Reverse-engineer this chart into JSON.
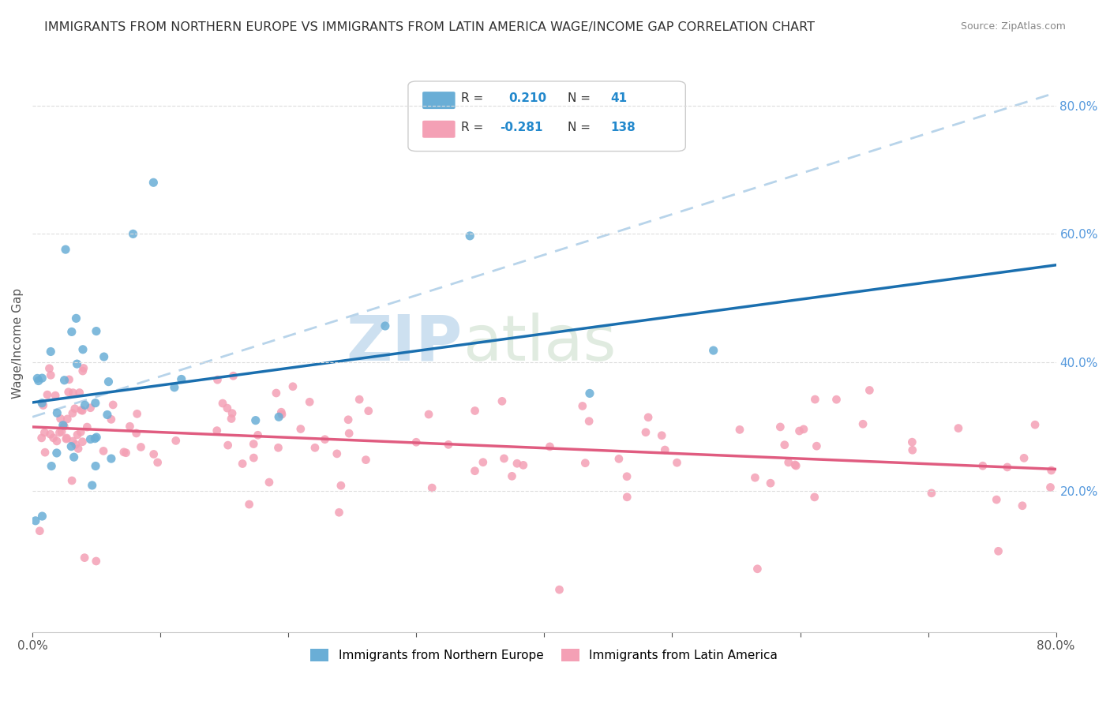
{
  "title": "IMMIGRANTS FROM NORTHERN EUROPE VS IMMIGRANTS FROM LATIN AMERICA WAGE/INCOME GAP CORRELATION CHART",
  "source": "Source: ZipAtlas.com",
  "ylabel": "Wage/Income Gap",
  "right_yticks": [
    "80.0%",
    "60.0%",
    "40.0%",
    "20.0%"
  ],
  "right_ytick_vals": [
    0.8,
    0.6,
    0.4,
    0.2
  ],
  "watermark_zip": "ZIP",
  "watermark_atlas": "atlas",
  "legend_blue_r_val": "0.210",
  "legend_blue_n_val": "41",
  "legend_pink_r_val": "-0.281",
  "legend_pink_n_val": "138",
  "legend_label_blue": "Immigrants from Northern Europe",
  "legend_label_pink": "Immigrants from Latin America",
  "blue_color": "#6aaed6",
  "pink_color": "#f4a0b5",
  "blue_line_color": "#1a6faf",
  "pink_line_color": "#e05c80",
  "trendline_dashed_color": "#b8d4ea",
  "xlim": [
    0.0,
    0.8
  ],
  "ylim": [
    -0.02,
    0.88
  ]
}
